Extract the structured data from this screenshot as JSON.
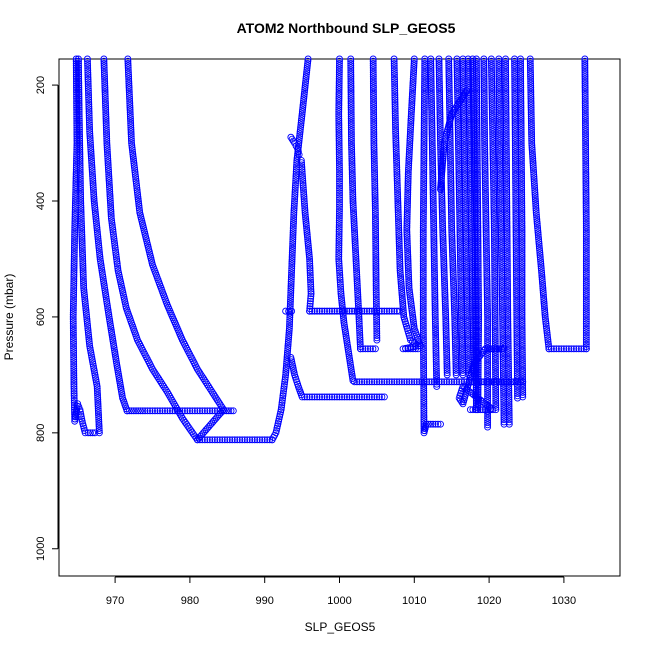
{
  "chart_data": {
    "type": "scatter",
    "title": "ATOM2 Northbound SLP_GEOS5",
    "xlabel": "SLP_GEOS5",
    "ylabel": "Pressure (mbar)",
    "xlim": [
      962.5,
      1037.5
    ],
    "ylim": [
      1047,
      155
    ],
    "y_reversed": true,
    "x_ticks": [
      970,
      980,
      990,
      1000,
      1010,
      1020,
      1030
    ],
    "y_ticks": [
      200,
      400,
      600,
      800,
      1000
    ],
    "marker": "open-circle",
    "series_color": "#0000ff",
    "series": [
      {
        "points": [
          [
            964.8,
            155
          ],
          [
            964.9,
            300
          ],
          [
            964.6,
            450
          ],
          [
            964.4,
            600
          ],
          [
            964.5,
            720
          ],
          [
            964.6,
            780
          ],
          [
            965.0,
            750
          ],
          [
            965.3,
            760
          ],
          [
            965.6,
            780
          ],
          [
            966.0,
            800
          ],
          [
            966.4,
            800
          ],
          [
            967.0,
            800
          ],
          [
            967.3,
            800
          ],
          [
            965.1,
            155
          ],
          [
            965.2,
            250
          ],
          [
            965.4,
            400
          ],
          [
            965.8,
            550
          ],
          [
            966.6,
            650
          ],
          [
            967.6,
            720
          ],
          [
            967.9,
            800
          ],
          [
            966.3,
            155
          ],
          [
            966.6,
            280
          ],
          [
            967.2,
            400
          ],
          [
            968.0,
            500
          ],
          [
            969.2,
            600
          ],
          [
            970.2,
            680
          ],
          [
            971.0,
            740
          ],
          [
            971.6,
            762
          ],
          [
            971.6,
            762
          ],
          [
            974,
            762
          ],
          [
            976,
            762
          ],
          [
            978,
            762
          ],
          [
            980,
            762
          ],
          [
            982,
            762
          ],
          [
            984,
            762
          ],
          [
            985.8,
            762
          ],
          [
            968.5,
            155
          ],
          [
            968.9,
            300
          ],
          [
            969.5,
            430
          ],
          [
            970.4,
            520
          ],
          [
            971.5,
            585
          ],
          [
            973,
            640
          ],
          [
            975,
            690
          ],
          [
            977,
            730
          ],
          [
            979,
            775
          ],
          [
            981,
            812
          ],
          [
            971.7,
            155
          ],
          [
            972.2,
            300
          ],
          [
            973.3,
            420
          ],
          [
            975,
            510
          ],
          [
            977,
            580
          ],
          [
            979,
            640
          ],
          [
            981,
            690
          ],
          [
            983,
            730
          ],
          [
            984.5,
            760
          ],
          [
            981,
            812
          ],
          [
            983,
            812
          ],
          [
            985,
            812
          ],
          [
            987,
            812
          ],
          [
            989,
            812
          ],
          [
            991,
            812
          ],
          [
            991,
            812
          ],
          [
            991.5,
            800
          ],
          [
            992.2,
            760
          ],
          [
            992.8,
            700
          ],
          [
            993.3,
            620
          ],
          [
            993.6,
            520
          ],
          [
            993.9,
            420
          ],
          [
            994.3,
            330
          ],
          [
            995,
            250
          ],
          [
            995.8,
            155
          ],
          [
            992.8,
            590
          ],
          [
            993.2,
            590
          ],
          [
            993.6,
            590
          ],
          [
            993.5,
            290
          ],
          [
            994,
            300
          ],
          [
            994.4,
            310
          ],
          [
            994.6,
            320
          ],
          [
            993.5,
            670
          ],
          [
            994,
            700
          ],
          [
            994.5,
            720
          ],
          [
            995,
            738
          ],
          [
            997,
            738
          ],
          [
            999,
            738
          ],
          [
            1001,
            738
          ],
          [
            1003,
            738
          ],
          [
            1005,
            738
          ],
          [
            1006,
            738
          ],
          [
            994.9,
            330
          ],
          [
            995.4,
            420
          ],
          [
            996,
            500
          ],
          [
            996.2,
            560
          ],
          [
            996,
            590
          ],
          [
            996,
            590
          ],
          [
            998,
            590
          ],
          [
            1000,
            590
          ],
          [
            1002,
            590
          ],
          [
            1004,
            590
          ],
          [
            1006,
            590
          ],
          [
            1008,
            590
          ],
          [
            1000,
            155
          ],
          [
            999.9,
            250
          ],
          [
            1000,
            350
          ],
          [
            1000,
            410
          ],
          [
            999.9,
            500
          ],
          [
            1000.2,
            560
          ],
          [
            1000.6,
            610
          ],
          [
            1001.2,
            660
          ],
          [
            1001.8,
            710
          ],
          [
            1002,
            712
          ],
          [
            1004,
            712
          ],
          [
            1006,
            712
          ],
          [
            1008,
            712
          ],
          [
            1010,
            712
          ],
          [
            1012,
            712
          ],
          [
            1014,
            712
          ],
          [
            1016,
            712
          ],
          [
            1018,
            712
          ],
          [
            1020,
            712
          ],
          [
            1022,
            712
          ],
          [
            1024.5,
            712
          ],
          [
            1001.5,
            155
          ],
          [
            1001.6,
            300
          ],
          [
            1001.8,
            400
          ],
          [
            1002.2,
            500
          ],
          [
            1002.6,
            600
          ],
          [
            1002.8,
            655
          ],
          [
            1002.8,
            655
          ],
          [
            1003.8,
            655
          ],
          [
            1004.8,
            655
          ],
          [
            1004.5,
            155
          ],
          [
            1004.6,
            300
          ],
          [
            1004.8,
            420
          ],
          [
            1004.9,
            550
          ],
          [
            1005,
            640
          ],
          [
            1007.3,
            155
          ],
          [
            1007.5,
            280
          ],
          [
            1007.8,
            400
          ],
          [
            1008.1,
            520
          ],
          [
            1008.6,
            600
          ],
          [
            1009.5,
            640
          ],
          [
            1010.5,
            650
          ],
          [
            1008.5,
            655
          ],
          [
            1009.5,
            655
          ],
          [
            1010.5,
            655
          ],
          [
            1010,
            155
          ],
          [
            1009.6,
            250
          ],
          [
            1009.2,
            350
          ],
          [
            1009,
            450
          ],
          [
            1009.3,
            550
          ],
          [
            1010,
            620
          ],
          [
            1010.8,
            650
          ],
          [
            1011.4,
            155
          ],
          [
            1011.3,
            300
          ],
          [
            1011.2,
            450
          ],
          [
            1011.2,
            600
          ],
          [
            1011.3,
            800
          ],
          [
            1011.6,
            785
          ],
          [
            1012.5,
            785
          ],
          [
            1013.5,
            785
          ],
          [
            1012.2,
            155
          ],
          [
            1012.4,
            300
          ],
          [
            1012.6,
            450
          ],
          [
            1012.8,
            600
          ],
          [
            1013,
            720
          ],
          [
            1013.3,
            155
          ],
          [
            1013.5,
            300
          ],
          [
            1013.8,
            450
          ],
          [
            1014.2,
            600
          ],
          [
            1014.4,
            700
          ],
          [
            1014.6,
            155
          ],
          [
            1014.8,
            300
          ],
          [
            1015,
            450
          ],
          [
            1015.4,
            600
          ],
          [
            1015.6,
            700
          ],
          [
            1015.7,
            155
          ],
          [
            1015.9,
            300
          ],
          [
            1016.1,
            450
          ],
          [
            1016.3,
            600
          ],
          [
            1016.5,
            700
          ],
          [
            1016.5,
            155
          ],
          [
            1016.7,
            300
          ],
          [
            1016.9,
            450
          ],
          [
            1017.1,
            600
          ],
          [
            1017.3,
            700
          ],
          [
            1017.2,
            155
          ],
          [
            1017.4,
            300
          ],
          [
            1017.6,
            450
          ],
          [
            1017.8,
            600
          ],
          [
            1018,
            700
          ],
          [
            1017.8,
            155
          ],
          [
            1018,
            300
          ],
          [
            1018.1,
            450
          ],
          [
            1018.2,
            600
          ],
          [
            1018.3,
            760
          ],
          [
            1018.3,
            155
          ],
          [
            1018.4,
            300
          ],
          [
            1018.5,
            450
          ],
          [
            1018.6,
            600
          ],
          [
            1018.5,
            760
          ],
          [
            1019.3,
            155
          ],
          [
            1019.4,
            300
          ],
          [
            1019.6,
            450
          ],
          [
            1019.8,
            600
          ],
          [
            1019.8,
            790
          ],
          [
            1020.3,
            155
          ],
          [
            1020.5,
            300
          ],
          [
            1020.7,
            450
          ],
          [
            1020.8,
            600
          ],
          [
            1020.9,
            760
          ],
          [
            1021.3,
            155
          ],
          [
            1021.4,
            300
          ],
          [
            1021.6,
            450
          ],
          [
            1021.8,
            600
          ],
          [
            1022,
            785
          ],
          [
            1022.2,
            155
          ],
          [
            1022.3,
            300
          ],
          [
            1022.4,
            450
          ],
          [
            1022.5,
            600
          ],
          [
            1022.7,
            785
          ],
          [
            1023.4,
            155
          ],
          [
            1023.5,
            300
          ],
          [
            1023.6,
            450
          ],
          [
            1023.7,
            600
          ],
          [
            1023.8,
            740
          ],
          [
            1024.2,
            155
          ],
          [
            1024.3,
            300
          ],
          [
            1024.4,
            450
          ],
          [
            1024.4,
            600
          ],
          [
            1024.5,
            738
          ],
          [
            1025.5,
            155
          ],
          [
            1025.7,
            300
          ],
          [
            1026.3,
            420
          ],
          [
            1027,
            520
          ],
          [
            1027.5,
            600
          ],
          [
            1028,
            655
          ],
          [
            1028,
            655
          ],
          [
            1030,
            655
          ],
          [
            1032,
            655
          ],
          [
            1033,
            655
          ],
          [
            1032.8,
            155
          ],
          [
            1032.9,
            300
          ],
          [
            1033,
            450
          ],
          [
            1033,
            600
          ],
          [
            1033,
            655
          ],
          [
            1013.5,
            380
          ],
          [
            1014,
            300
          ],
          [
            1015,
            250
          ],
          [
            1016,
            230
          ],
          [
            1017,
            210
          ],
          [
            1017.5,
            760
          ],
          [
            1018.5,
            760
          ],
          [
            1019.5,
            760
          ],
          [
            1020.5,
            760
          ],
          [
            1016.5,
            720
          ],
          [
            1016,
            740
          ],
          [
            1016.5,
            750
          ],
          [
            1018,
            680
          ],
          [
            1019.5,
            655
          ],
          [
            1021,
            655
          ],
          [
            1022,
            655
          ]
        ]
      }
    ]
  }
}
